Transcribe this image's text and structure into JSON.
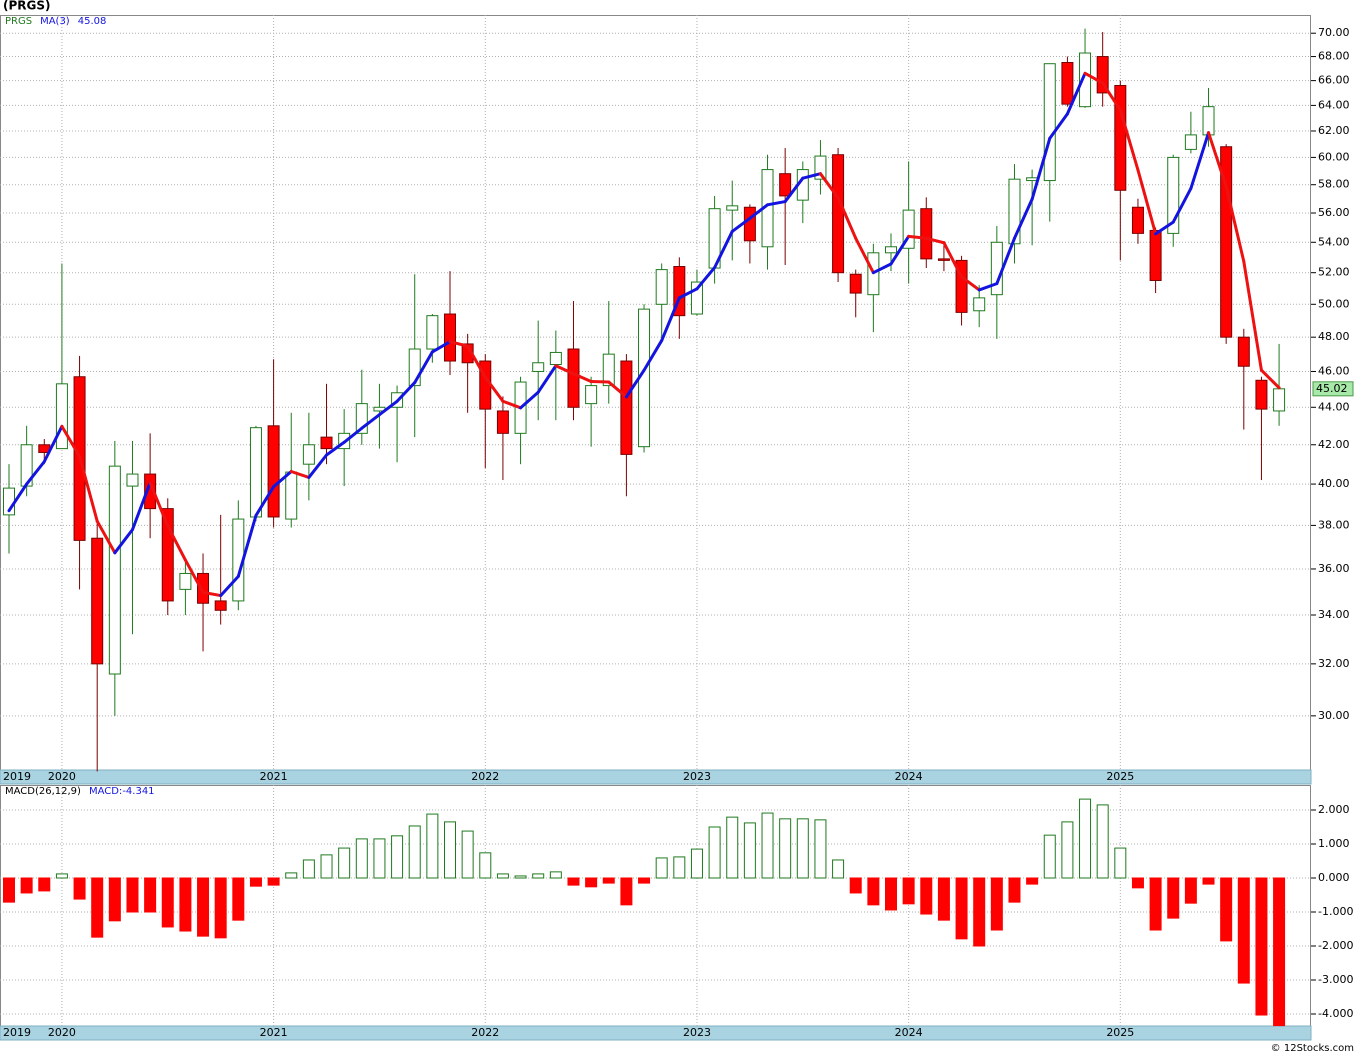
{
  "chart_data": [
    {
      "type": "candlestick",
      "title": "(PRGS)",
      "symbol": "PRGS",
      "categories": [
        "2019",
        null,
        null,
        "2020",
        null,
        null,
        null,
        null,
        null,
        null,
        null,
        null,
        null,
        null,
        null,
        "2021",
        null,
        null,
        null,
        null,
        null,
        null,
        null,
        null,
        null,
        null,
        null,
        "2022",
        null,
        null,
        null,
        null,
        null,
        null,
        null,
        null,
        null,
        null,
        null,
        "2023",
        null,
        null,
        null,
        null,
        null,
        null,
        null,
        null,
        null,
        null,
        null,
        "2024",
        null,
        null,
        null,
        null,
        null,
        null,
        null,
        null,
        null,
        null,
        null,
        "2025",
        null,
        null,
        null,
        null,
        null,
        null,
        null,
        null,
        null
      ],
      "open": [
        38.5,
        39.9,
        42.0,
        41.8,
        45.7,
        37.4,
        31.6,
        39.9,
        40.5,
        38.8,
        35.1,
        35.8,
        34.6,
        34.6,
        38.4,
        43.0,
        38.3,
        41.0,
        42.4,
        41.8,
        42.6,
        43.8,
        44.0,
        45.2,
        47.3,
        49.4,
        47.6,
        46.6,
        43.8,
        42.6,
        46.0,
        46.4,
        47.3,
        44.2,
        45.2,
        46.6,
        41.9,
        50.0,
        52.4,
        49.4,
        52.3,
        56.2,
        56.4,
        53.7,
        58.8,
        56.9,
        58.4,
        60.2,
        51.9,
        50.6,
        53.3,
        53.6,
        56.3,
        52.9,
        52.8,
        49.6,
        50.6,
        53.9,
        58.3,
        58.3,
        67.5,
        63.9,
        68.0,
        65.6,
        56.4,
        54.8,
        54.6,
        60.6,
        61.7,
        60.8,
        48.0,
        45.5,
        43.8
      ],
      "high": [
        41.0,
        43.0,
        42.3,
        52.6,
        46.9,
        38.2,
        42.2,
        42.2,
        42.6,
        39.3,
        36.4,
        36.7,
        38.5,
        39.2,
        43.0,
        46.7,
        43.7,
        43.7,
        45.3,
        43.9,
        46.1,
        45.3,
        45.2,
        51.9,
        49.4,
        52.1,
        48.2,
        47.0,
        44.6,
        45.7,
        49.0,
        48.4,
        50.2,
        45.7,
        50.2,
        47.0,
        50.0,
        52.6,
        53.0,
        52.2,
        57.2,
        58.3,
        56.6,
        60.2,
        60.7,
        59.7,
        61.3,
        60.7,
        52.2,
        53.9,
        54.6,
        59.7,
        57.1,
        53.8,
        53.1,
        51.2,
        55.1,
        59.5,
        59.1,
        67.4,
        68.0,
        70.4,
        70.1,
        66.0,
        57.0,
        55.0,
        60.2,
        63.5,
        65.4,
        61.0,
        48.5,
        45.7,
        47.6
      ],
      "low": [
        36.7,
        39.4,
        41.0,
        41.8,
        35.1,
        28.0,
        30.0,
        33.2,
        37.4,
        34.0,
        34.0,
        32.5,
        33.6,
        34.2,
        38.2,
        37.9,
        37.9,
        39.2,
        41.0,
        39.9,
        42.0,
        41.8,
        41.1,
        42.4,
        46.5,
        45.8,
        43.7,
        40.8,
        40.2,
        41.0,
        43.3,
        43.3,
        43.3,
        41.9,
        44.2,
        39.4,
        41.6,
        47.9,
        47.9,
        49.3,
        51.3,
        52.8,
        52.6,
        52.2,
        52.5,
        55.3,
        57.3,
        51.4,
        49.2,
        48.3,
        52.1,
        51.3,
        52.3,
        52.1,
        48.7,
        48.6,
        47.9,
        52.6,
        53.8,
        55.4,
        63.9,
        63.8,
        63.9,
        52.8,
        53.9,
        50.7,
        53.7,
        60.3,
        60.8,
        47.6,
        42.8,
        40.2,
        43.0
      ],
      "close": [
        39.8,
        42.0,
        41.6,
        45.3,
        37.3,
        32.0,
        40.9,
        40.5,
        38.8,
        34.6,
        35.8,
        34.5,
        34.2,
        38.3,
        42.9,
        38.4,
        40.6,
        42.0,
        41.8,
        42.6,
        44.2,
        44.0,
        44.8,
        47.3,
        49.3,
        46.6,
        46.5,
        43.9,
        42.6,
        45.4,
        46.5,
        47.1,
        44.0,
        45.2,
        47.0,
        41.5,
        49.7,
        52.2,
        49.3,
        51.4,
        56.3,
        56.5,
        54.1,
        59.1,
        57.2,
        59.1,
        60.1,
        52.0,
        50.7,
        53.3,
        53.7,
        56.2,
        52.9,
        52.8,
        49.5,
        50.4,
        54.0,
        58.4,
        58.5,
        67.4,
        64.1,
        68.3,
        65.0,
        57.6,
        54.6,
        51.5,
        60.0,
        61.7,
        63.9,
        48.0,
        46.3,
        43.9,
        45.02
      ],
      "up_fill": "#ffffff",
      "up_stroke": "#1f7a1f",
      "down_fill": "#ff0000",
      "down_stroke": "#7a0000",
      "ma": {
        "name": "MA(3)",
        "up_color": "#1414e0",
        "down_color": "#ee1111",
        "values": [
          38.7,
          40.0,
          41.13,
          42.97,
          41.4,
          38.2,
          36.73,
          37.8,
          40.07,
          37.97,
          36.4,
          34.97,
          34.83,
          35.67,
          38.47,
          39.87,
          40.63,
          40.33,
          41.47,
          42.13,
          42.87,
          43.6,
          44.33,
          45.37,
          47.13,
          47.73,
          47.47,
          45.67,
          44.33,
          43.97,
          44.83,
          46.33,
          45.87,
          45.43,
          45.4,
          44.57,
          46.07,
          47.8,
          50.4,
          50.97,
          52.33,
          54.73,
          55.63,
          56.57,
          56.8,
          58.47,
          58.8,
          57.07,
          54.27,
          52.0,
          52.57,
          54.4,
          54.27,
          53.97,
          51.73,
          50.9,
          51.3,
          54.27,
          56.97,
          61.43,
          63.33,
          66.6,
          65.8,
          63.63,
          59.07,
          54.57,
          55.37,
          57.73,
          61.87,
          57.87,
          52.73,
          46.07,
          45.08
        ]
      },
      "log": true,
      "grid": true,
      "ylim": [
        28.05,
        71.6
      ],
      "yticks": [
        {
          "value": 30,
          "label": "30.00"
        },
        {
          "value": 32,
          "label": "32.00"
        },
        {
          "value": 34,
          "label": "34.00"
        },
        {
          "value": 36,
          "label": "36.00"
        },
        {
          "value": 38,
          "label": "38.00"
        },
        {
          "value": 40,
          "label": "40.00"
        },
        {
          "value": 42,
          "label": "42.00"
        },
        {
          "value": 44,
          "label": "44.00"
        },
        {
          "value": 46,
          "label": "46.00"
        },
        {
          "value": 48,
          "label": "48.00"
        },
        {
          "value": 50,
          "label": "50.00"
        },
        {
          "value": 52,
          "label": "52.00"
        },
        {
          "value": 54,
          "label": "54.00"
        },
        {
          "value": 56,
          "label": "56.00"
        },
        {
          "value": 58,
          "label": "58.00"
        },
        {
          "value": 60,
          "label": "60.00"
        },
        {
          "value": 62,
          "label": "62.00"
        },
        {
          "value": 64,
          "label": "64.00"
        },
        {
          "value": 66,
          "label": "66.00"
        },
        {
          "value": 68,
          "label": "68.00"
        },
        {
          "value": 70,
          "label": "70.00"
        }
      ]
    },
    {
      "type": "bar",
      "title": "MACD(26,12,9)",
      "categories": [
        "2019",
        null,
        null,
        "2020",
        null,
        null,
        null,
        null,
        null,
        null,
        null,
        null,
        null,
        null,
        null,
        "2021",
        null,
        null,
        null,
        null,
        null,
        null,
        null,
        null,
        null,
        null,
        null,
        "2022",
        null,
        null,
        null,
        null,
        null,
        null,
        null,
        null,
        null,
        null,
        null,
        "2023",
        null,
        null,
        null,
        null,
        null,
        null,
        null,
        null,
        null,
        null,
        null,
        "2024",
        null,
        null,
        null,
        null,
        null,
        null,
        null,
        null,
        null,
        null,
        null,
        "2025",
        null,
        null,
        null,
        null,
        null,
        null,
        null,
        null,
        null
      ],
      "series": [
        {
          "name": "MACD:",
          "pos_color": "#1f7a1f",
          "neg_color": "#ff0000",
          "values": [
            -0.71,
            -0.44,
            -0.38,
            0.12,
            -0.62,
            -1.74,
            -1.26,
            -1.0,
            -1.0,
            -1.44,
            -1.56,
            -1.71,
            -1.76,
            -1.24,
            -0.24,
            -0.21,
            0.15,
            0.53,
            0.68,
            0.88,
            1.15,
            1.15,
            1.24,
            1.53,
            1.88,
            1.65,
            1.38,
            0.74,
            0.12,
            0.06,
            0.12,
            0.18,
            -0.21,
            -0.26,
            -0.15,
            -0.79,
            -0.15,
            0.59,
            0.62,
            0.85,
            1.5,
            1.79,
            1.62,
            1.91,
            1.74,
            1.74,
            1.71,
            0.53,
            -0.44,
            -0.79,
            -0.94,
            -0.76,
            -1.06,
            -1.24,
            -1.79,
            -2.0,
            -1.53,
            -0.71,
            -0.18,
            1.26,
            1.65,
            2.32,
            2.15,
            0.88,
            -0.29,
            -1.53,
            -1.18,
            -0.74,
            -0.18,
            -1.85,
            -3.09,
            -4.03,
            -4.341
          ]
        }
      ],
      "grid": true,
      "ylim": [
        -4.353,
        2.735
      ],
      "yticks": [
        {
          "value": 2,
          "label": "2.000"
        },
        {
          "value": 1,
          "label": "1.000"
        },
        {
          "value": 0,
          "label": "0.000"
        },
        {
          "value": -1,
          "label": "-1.000"
        },
        {
          "value": -2,
          "label": "-2.000"
        },
        {
          "value": -3,
          "label": "-3.000"
        },
        {
          "value": -4,
          "label": "-4.000"
        }
      ]
    }
  ],
  "footer": "© 12Stocks.com"
}
